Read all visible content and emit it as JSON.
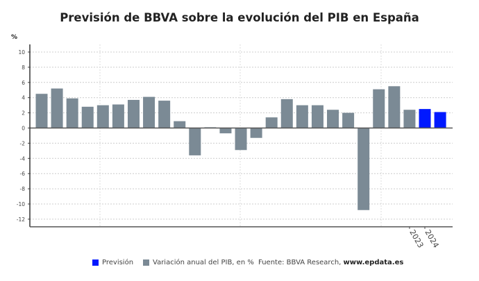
{
  "chart_data": {
    "type": "bar",
    "title": "Previsión de BBVA sobre la evolución del PIB en España",
    "ylabel": "%",
    "ylim": [
      -13,
      11
    ],
    "yticks": [
      10,
      8,
      6,
      4,
      2,
      0,
      -2,
      -4,
      -6,
      -8,
      -10,
      -12
    ],
    "grid": true,
    "values": [
      4.5,
      5.2,
      3.9,
      2.8,
      3.0,
      3.1,
      3.7,
      4.1,
      3.6,
      0.9,
      -3.6,
      0.1,
      -0.7,
      -2.9,
      -1.3,
      1.4,
      3.8,
      3.0,
      3.0,
      2.4,
      2.0,
      -10.8,
      5.1,
      5.5,
      2.4,
      2.5,
      2.1
    ],
    "forecast": [
      false,
      false,
      false,
      false,
      false,
      false,
      false,
      false,
      false,
      false,
      false,
      false,
      false,
      false,
      false,
      false,
      false,
      false,
      false,
      false,
      false,
      false,
      false,
      false,
      false,
      true,
      true
    ],
    "x_tick_labels": [
      {
        "label": "2023",
        "bar": 24
      },
      {
        "label": "2024",
        "bar": 25
      }
    ],
    "series": [
      {
        "name": "Previsión",
        "color": "#0019ff"
      },
      {
        "name": "Variación anual del PIB, en %",
        "color": "#7b8a95"
      }
    ],
    "legend_position": "bottom"
  },
  "source": {
    "label": "Fuente: BBVA Research, ",
    "site": "www.epdata.es"
  }
}
